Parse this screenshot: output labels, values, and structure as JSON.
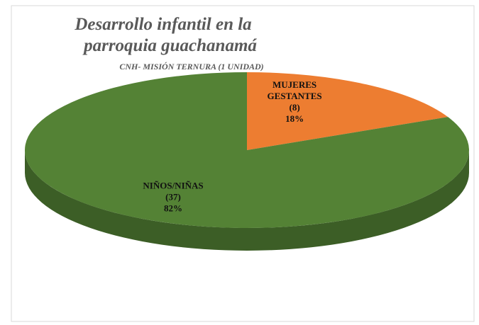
{
  "chart_data": {
    "type": "pie",
    "title": "Desarrollo infantil en la parroquia guachanamá",
    "subtitle": "CNH- MISIÓN TERNURA (1 UNIDAD)",
    "categories": [
      [
        "MUJERES",
        "GESTANTES"
      ],
      [
        "NIÑOS/NIÑAS"
      ]
    ],
    "count_labels": [
      "(8)",
      "(37)"
    ],
    "values": [
      18,
      82
    ],
    "value_labels": [
      "18%",
      "82%"
    ],
    "colors": [
      "#ed7d31",
      "#548235"
    ]
  }
}
